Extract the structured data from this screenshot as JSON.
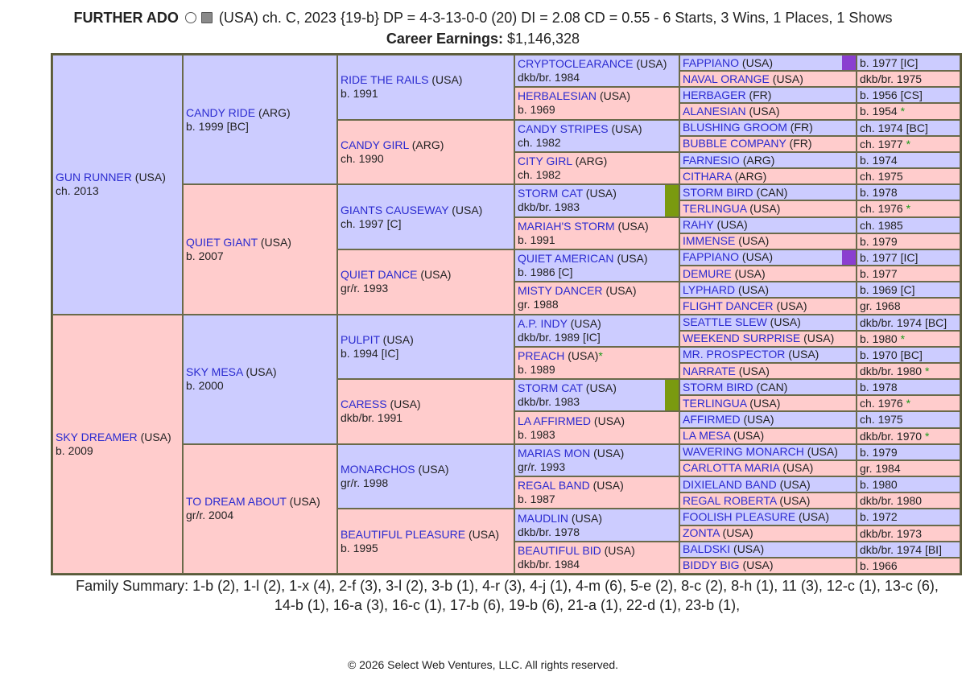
{
  "header": {
    "title": "FURTHER ADO",
    "details": "(USA) ch. C, 2023 {19-b} DP = 4-3-13-0-0 (20) DI = 2.08   CD = 0.55 - 6 Starts, 3 Wins, 1 Places, 1 Shows",
    "earnings_label": "Career Earnings:",
    "earnings_value": "$1,146,328"
  },
  "pedigree": {
    "gen1": [
      {
        "name": "GUN RUNNER",
        "country": "(USA)",
        "info": "ch. 2013"
      },
      {
        "name": "SKY DREAMER",
        "country": "(USA)",
        "info": "b. 2009"
      }
    ],
    "gen2": [
      {
        "name": "CANDY RIDE",
        "country": "(ARG)",
        "info": "b. 1999 [BC]"
      },
      {
        "name": "QUIET GIANT",
        "country": "(USA)",
        "info": "b. 2007"
      },
      {
        "name": "SKY MESA",
        "country": "(USA)",
        "info": "b. 2000"
      },
      {
        "name": "TO DREAM ABOUT",
        "country": "(USA)",
        "info": "gr/r. 2004"
      }
    ],
    "gen3": [
      {
        "name": "RIDE THE RAILS",
        "country": "(USA)",
        "info": "b. 1991"
      },
      {
        "name": "CANDY GIRL",
        "country": "(ARG)",
        "info": "ch. 1990"
      },
      {
        "name": "GIANTS CAUSEWAY",
        "country": "(USA)",
        "info": "ch. 1997 [C]"
      },
      {
        "name": "QUIET DANCE",
        "country": "(USA)",
        "info": "gr/r. 1993"
      },
      {
        "name": "PULPIT",
        "country": "(USA)",
        "info": "b. 1994 [IC]"
      },
      {
        "name": "CARESS",
        "country": "(USA)",
        "info": "dkb/br. 1991"
      },
      {
        "name": "MONARCHOS",
        "country": "(USA)",
        "info": "gr/r. 1998"
      },
      {
        "name": "BEAUTIFUL PLEASURE",
        "country": "(USA)",
        "info": "b. 1995"
      }
    ],
    "gen4": [
      {
        "name": "CRYPTOCLEARANCE",
        "country": "(USA)",
        "info": "dkb/br. 1984"
      },
      {
        "name": "HERBALESIAN",
        "country": "(USA)",
        "info": "b. 1969"
      },
      {
        "name": "CANDY STRIPES",
        "country": "(USA)",
        "info": "ch. 1982"
      },
      {
        "name": "CITY GIRL",
        "country": "(ARG)",
        "info": "ch. 1982"
      },
      {
        "name": "STORM CAT",
        "country": "(USA)",
        "info": "dkb/br. 1983",
        "flag": "#7a9a10"
      },
      {
        "name": "MARIAH'S STORM",
        "country": "(USA)",
        "info": "b. 1991"
      },
      {
        "name": "QUIET AMERICAN",
        "country": "(USA)",
        "info": "b. 1986 [C]"
      },
      {
        "name": "MISTY DANCER",
        "country": "(USA)",
        "info": "gr. 1988"
      },
      {
        "name": "A.P. INDY",
        "country": "(USA)",
        "info": "dkb/br. 1989 [IC]"
      },
      {
        "name": "PREACH",
        "country": "(USA)",
        "mark": "*",
        "info": "b. 1989"
      },
      {
        "name": "STORM CAT",
        "country": "(USA)",
        "info": "dkb/br. 1983",
        "flag": "#7a9a10"
      },
      {
        "name": "LA AFFIRMED",
        "country": "(USA)",
        "info": "b. 1983"
      },
      {
        "name": "MARIAS MON",
        "country": "(USA)",
        "info": "gr/r. 1993"
      },
      {
        "name": "REGAL BAND",
        "country": "(USA)",
        "info": "b. 1987"
      },
      {
        "name": "MAUDLIN",
        "country": "(USA)",
        "info": "dkb/br. 1978"
      },
      {
        "name": "BEAUTIFUL BID",
        "country": "(USA)",
        "info": "dkb/br. 1984"
      }
    ],
    "gen5": [
      {
        "name": "FAPPIANO",
        "country": "(USA)",
        "info": "b. 1977 [IC]",
        "flag": "#8a3fd0"
      },
      {
        "name": "NAVAL ORANGE",
        "country": "(USA)",
        "info": "dkb/br. 1975"
      },
      {
        "name": "HERBAGER",
        "country": "(FR)",
        "info": "b. 1956 [CS]"
      },
      {
        "name": "ALANESIAN",
        "country": "(USA)",
        "info": "b. 1954",
        "mark": "*"
      },
      {
        "name": "BLUSHING GROOM",
        "country": "(FR)",
        "info": "ch. 1974 [BC]"
      },
      {
        "name": "BUBBLE COMPANY",
        "country": "(FR)",
        "info": "ch. 1977",
        "mark": "*"
      },
      {
        "name": "FARNESIO",
        "country": "(ARG)",
        "info": "b. 1974"
      },
      {
        "name": "CITHARA",
        "country": "(ARG)",
        "info": "ch. 1975"
      },
      {
        "name": "STORM BIRD",
        "country": "(CAN)",
        "info": "b. 1978"
      },
      {
        "name": "TERLINGUA",
        "country": "(USA)",
        "info": "ch. 1976",
        "mark": "*"
      },
      {
        "name": "RAHY",
        "country": "(USA)",
        "info": "ch. 1985"
      },
      {
        "name": "IMMENSE",
        "country": "(USA)",
        "info": "b. 1979"
      },
      {
        "name": "FAPPIANO",
        "country": "(USA)",
        "info": "b. 1977 [IC]",
        "flag": "#8a3fd0"
      },
      {
        "name": "DEMURE",
        "country": "(USA)",
        "info": "b. 1977"
      },
      {
        "name": "LYPHARD",
        "country": "(USA)",
        "info": "b. 1969 [C]"
      },
      {
        "name": "FLIGHT DANCER",
        "country": "(USA)",
        "info": "gr. 1968"
      },
      {
        "name": "SEATTLE SLEW",
        "country": "(USA)",
        "info": "dkb/br. 1974 [BC]"
      },
      {
        "name": "WEEKEND SURPRISE",
        "country": "(USA)",
        "info": "b. 1980",
        "mark": "*"
      },
      {
        "name": "MR. PROSPECTOR",
        "country": "(USA)",
        "info": "b. 1970 [BC]"
      },
      {
        "name": "NARRATE",
        "country": "(USA)",
        "info": "dkb/br. 1980",
        "mark": "*"
      },
      {
        "name": "STORM BIRD",
        "country": "(CAN)",
        "info": "b. 1978"
      },
      {
        "name": "TERLINGUA",
        "country": "(USA)",
        "info": "ch. 1976",
        "mark": "*"
      },
      {
        "name": "AFFIRMED",
        "country": "(USA)",
        "info": "ch. 1975"
      },
      {
        "name": "LA MESA",
        "country": "(USA)",
        "info": "dkb/br. 1970",
        "mark": "*"
      },
      {
        "name": "WAVERING MONARCH",
        "country": "(USA)",
        "info": "b. 1979"
      },
      {
        "name": "CARLOTTA MARIA",
        "country": "(USA)",
        "info": "gr. 1984"
      },
      {
        "name": "DIXIELAND BAND",
        "country": "(USA)",
        "info": "b. 1980"
      },
      {
        "name": "REGAL ROBERTA",
        "country": "(USA)",
        "info": "dkb/br. 1980"
      },
      {
        "name": "FOOLISH PLEASURE",
        "country": "(USA)",
        "info": "b. 1972"
      },
      {
        "name": "ZONTA",
        "country": "(USA)",
        "info": "dkb/br. 1973"
      },
      {
        "name": "BALDSKI",
        "country": "(USA)",
        "info": "dkb/br. 1974 [BI]"
      },
      {
        "name": "BIDDY BIG",
        "country": "(USA)",
        "info": "b. 1966"
      }
    ]
  },
  "family_summary": "Family Summary: 1-b (2), 1-l (2), 1-x (4), 2-f (3), 3-l (2), 3-b (1), 4-r (3), 4-j (1), 4-m (6), 5-e (2), 8-c (2), 8-h (1), 11 (3), 12-c (1), 13-c (6), 14-b (1), 16-a (3), 16-c (1), 17-b (6), 19-b (6), 21-a (1), 22-d (1), 23-b (1),",
  "footer": "© 2026 Select Web Ventures, LLC. All rights reserved."
}
